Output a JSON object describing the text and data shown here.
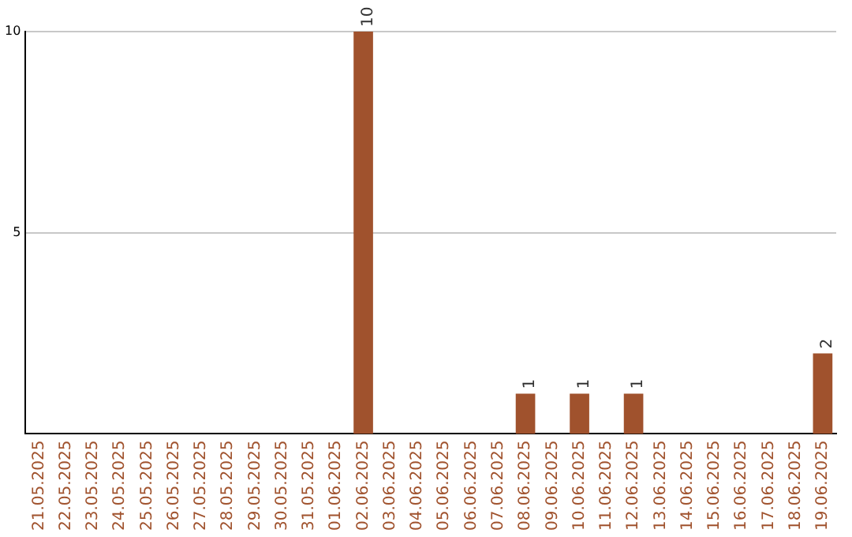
{
  "chart_data": {
    "type": "bar",
    "categories": [
      "21.05.2025",
      "22.05.2025",
      "23.05.2025",
      "24.05.2025",
      "25.05.2025",
      "26.05.2025",
      "27.05.2025",
      "28.05.2025",
      "29.05.2025",
      "30.05.2025",
      "31.05.2025",
      "01.06.2025",
      "02.06.2025",
      "03.06.2025",
      "04.06.2025",
      "05.06.2025",
      "06.06.2025",
      "07.06.2025",
      "08.06.2025",
      "09.06.2025",
      "10.06.2025",
      "11.06.2025",
      "12.06.2025",
      "13.06.2025",
      "14.06.2025",
      "15.06.2025",
      "16.06.2025",
      "17.06.2025",
      "18.06.2025",
      "19.06.2025"
    ],
    "values": [
      0,
      0,
      0,
      0,
      0,
      0,
      0,
      0,
      0,
      0,
      0,
      0,
      10,
      0,
      0,
      0,
      0,
      0,
      1,
      0,
      1,
      0,
      1,
      0,
      0,
      0,
      0,
      0,
      0,
      2
    ],
    "value_labels": [
      null,
      null,
      null,
      null,
      null,
      null,
      null,
      null,
      null,
      null,
      null,
      null,
      "10",
      null,
      null,
      null,
      null,
      null,
      "1",
      null,
      "1",
      null,
      "1",
      null,
      null,
      null,
      null,
      null,
      null,
      "2"
    ],
    "color": "#a0522d",
    "ylim": [
      0,
      10
    ],
    "yticks": [
      5,
      10
    ],
    "grid": "y",
    "legend": false
  }
}
